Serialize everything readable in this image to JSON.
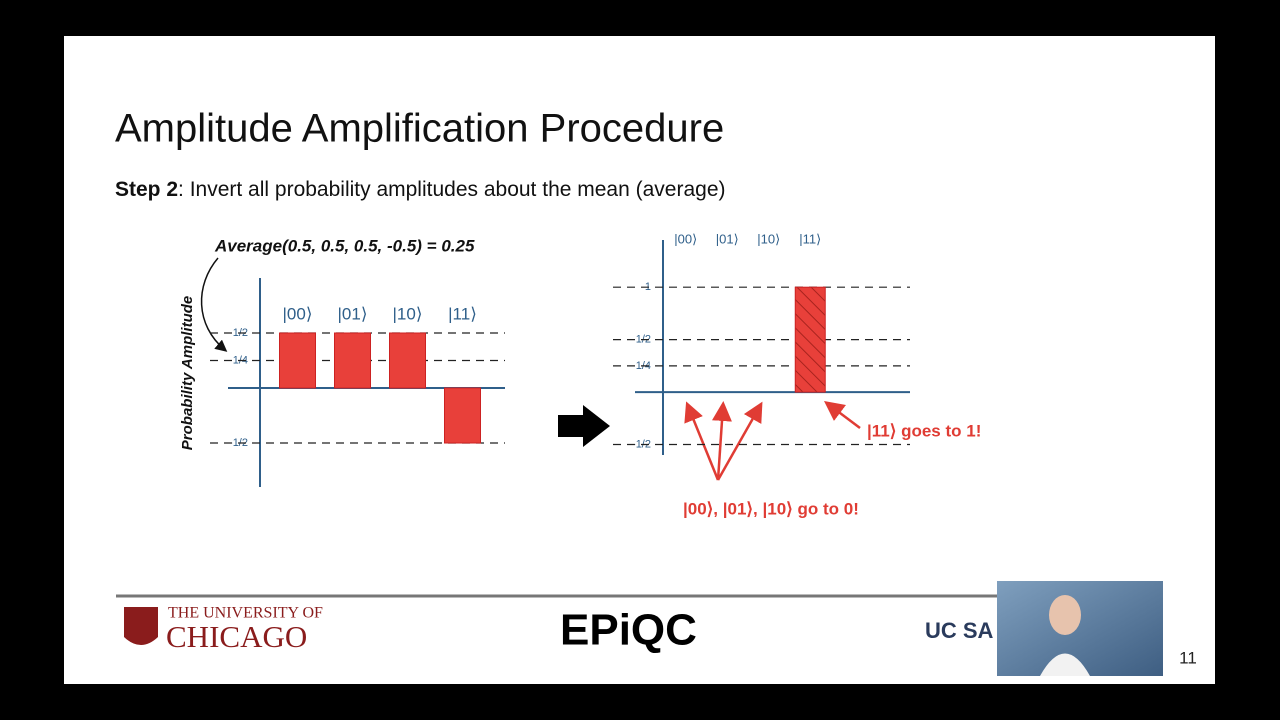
{
  "slide": {
    "title": "Amplitude Amplification Procedure",
    "step_label": "Step 2",
    "step_text": ": Invert all probability amplitudes about the mean (average)",
    "page_number": "11",
    "footer": {
      "chicago_top": "THE UNIVERSITY OF",
      "chicago_bottom": "CHICAGO",
      "epiqc": "EPiQC",
      "ucsd": "UC SA"
    }
  },
  "chart_data": [
    {
      "type": "bar",
      "annotation": "Average(0.5, 0.5, 0.5, -0.5) = 0.25",
      "y_label": "Probability Amplitude",
      "categories": [
        "|00⟩",
        "|01⟩",
        "|10⟩",
        "|11⟩"
      ],
      "values": [
        0.5,
        0.5,
        0.5,
        -0.5
      ],
      "color": "#e8403a",
      "ylim": [
        -0.9,
        1.0
      ],
      "yticks": [
        {
          "value": 0.5,
          "label": "1/2"
        },
        {
          "value": 0.25,
          "label": "1/4"
        },
        {
          "value": -0.5,
          "label": "-1/2"
        }
      ],
      "grid": true
    },
    {
      "type": "bar",
      "annotations": [
        "|11⟩ goes to 1!",
        "|00⟩, |01⟩, |10⟩ go to 0!"
      ],
      "categories": [
        "|00⟩",
        "|01⟩",
        "|10⟩",
        "|11⟩"
      ],
      "values": [
        0,
        0,
        0,
        1
      ],
      "color": "#e8403a",
      "ylim": [
        -0.6,
        1.45
      ],
      "yticks": [
        {
          "value": 1,
          "label": "1"
        },
        {
          "value": 0.5,
          "label": "1/2"
        },
        {
          "value": 0.25,
          "label": "1/4"
        },
        {
          "value": -0.5,
          "label": "-1/2"
        }
      ],
      "grid": true
    }
  ]
}
